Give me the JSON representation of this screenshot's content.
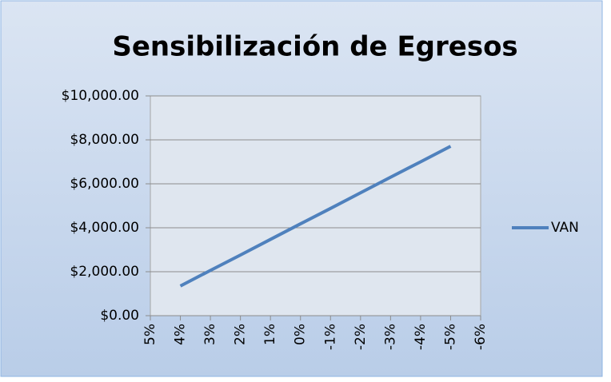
{
  "chart_data": {
    "type": "line",
    "title": "Sensibilización de Egresos",
    "categories": [
      "5%",
      "4%",
      "3%",
      "2%",
      "1%",
      "0%",
      "-1%",
      "-2%",
      "-3%",
      "-4%",
      "-5%",
      "-6%"
    ],
    "series": [
      {
        "name": "VAN",
        "color": "#4f81bd",
        "values": [
          null,
          1350,
          2060,
          2760,
          3470,
          4180,
          4880,
          5590,
          6300,
          7000,
          7710,
          null
        ]
      }
    ],
    "ylim": [
      0,
      10000
    ],
    "yticks": [
      {
        "value": 0,
        "label": "$0.00"
      },
      {
        "value": 2000,
        "label": "$2,000.00"
      },
      {
        "value": 4000,
        "label": "$4,000.00"
      },
      {
        "value": 6000,
        "label": "$6,000.00"
      },
      {
        "value": 8000,
        "label": "$8,000.00"
      },
      {
        "value": 10000,
        "label": "$10,000.00"
      }
    ],
    "grid": true,
    "legend": "right"
  }
}
